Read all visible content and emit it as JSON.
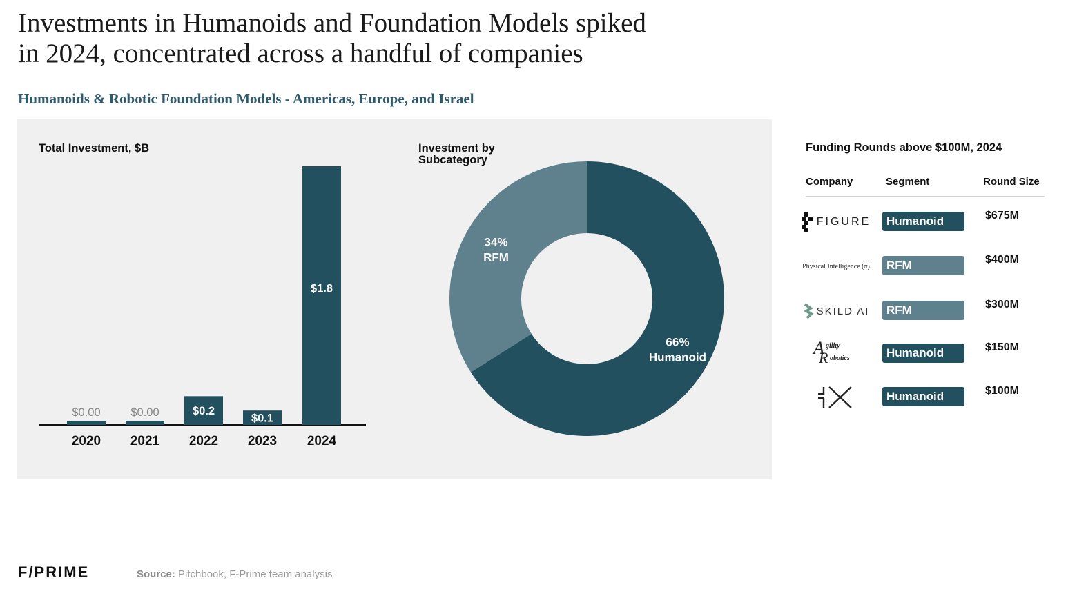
{
  "title_line1": "Investments in Humanoids and Foundation Models spiked",
  "title_line2": "in 2024, concentrated across a handful of companies",
  "subtitle": "Humanoids & Robotic Foundation Models - Americas, Europe, and Israel",
  "colors": {
    "dark": "#23505f",
    "light": "#5f808d",
    "panel": "#f0f0f0",
    "subtitle": "#2f5a6b"
  },
  "chart_data": [
    {
      "type": "bar",
      "title": "Total Investment, $B",
      "categories": [
        "2020",
        "2021",
        "2022",
        "2023",
        "2024"
      ],
      "values": [
        0.0,
        0.0,
        0.2,
        0.1,
        1.8
      ],
      "value_labels": [
        "$0.00",
        "$0.00",
        "$0.2",
        "$0.1",
        "$1.8"
      ],
      "xlabel": "",
      "ylabel": "",
      "ylim": [
        0,
        1.8
      ]
    },
    {
      "type": "pie",
      "title": "Investment by Subcategory",
      "slices": [
        {
          "label": "Humanoid",
          "pct_label": "66%",
          "value": 66,
          "color": "#23505f"
        },
        {
          "label": "RFM",
          "pct_label": "34%",
          "value": 34,
          "color": "#5f808d"
        }
      ]
    },
    {
      "type": "table",
      "title": "Funding Rounds above $100M, 2024",
      "columns": [
        "Company",
        "Segment",
        "Round Size"
      ],
      "rows": [
        {
          "company": "FIGURE",
          "segment": "Humanoid",
          "size": "$675M"
        },
        {
          "company": "Physical Intelligence (π)",
          "segment": "RFM",
          "size": "$400M"
        },
        {
          "company": "SKILD AI",
          "segment": "RFM",
          "size": "$300M"
        },
        {
          "company": "Agility Robotics",
          "segment": "Humanoid",
          "size": "$150M"
        },
        {
          "company": "1X",
          "segment": "Humanoid",
          "size": "$100M"
        }
      ]
    }
  ],
  "logos": {
    "figure": "FIGURE",
    "physical_intelligence": "Physical Intelligence (π)",
    "skild": "SKILD AI",
    "agility_a": "A",
    "agility_gility": "gility",
    "agility_r": "R",
    "agility_obotics": "obotics"
  },
  "footer": {
    "brand": "F/PRIME",
    "source_label": "Source:",
    "source_text": " Pitchbook, F-Prime team analysis"
  }
}
